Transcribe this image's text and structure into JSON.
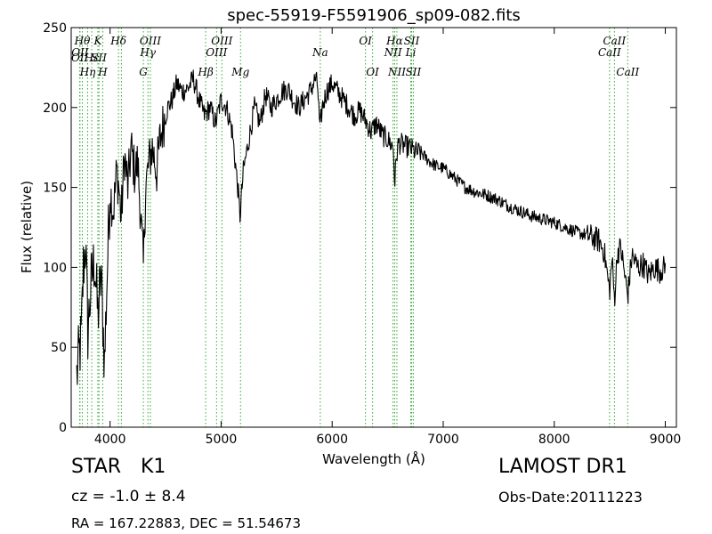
{
  "chart_data": {
    "type": "line",
    "title": "spec-55919-F5591906_sp09-082.fits",
    "xlabel": "Wavelength (Å)",
    "ylabel": "Flux (relative)",
    "xlim": [
      3650,
      9100
    ],
    "ylim": [
      0,
      250
    ],
    "x_ticks": [
      4000,
      5000,
      6000,
      7000,
      8000,
      9000
    ],
    "y_ticks": [
      0,
      50,
      100,
      150,
      200,
      250
    ],
    "grid": false,
    "line_color": "#000000",
    "line_marker_color": "#33aa33",
    "spectrum_anchors": [
      [
        3700,
        32
      ],
      [
        3720,
        45
      ],
      [
        3740,
        55
      ],
      [
        3760,
        100
      ],
      [
        3780,
        115
      ],
      [
        3800,
        60
      ],
      [
        3830,
        90
      ],
      [
        3860,
        105
      ],
      [
        3890,
        70
      ],
      [
        3920,
        95
      ],
      [
        3950,
        40
      ],
      [
        3980,
        110
      ],
      [
        4000,
        148
      ],
      [
        4030,
        135
      ],
      [
        4060,
        160
      ],
      [
        4080,
        150
      ],
      [
        4100,
        130
      ],
      [
        4130,
        170
      ],
      [
        4160,
        150
      ],
      [
        4190,
        175
      ],
      [
        4220,
        160
      ],
      [
        4250,
        165
      ],
      [
        4270,
        140
      ],
      [
        4300,
        100
      ],
      [
        4320,
        150
      ],
      [
        4350,
        165
      ],
      [
        4380,
        175
      ],
      [
        4420,
        160
      ],
      [
        4450,
        180
      ],
      [
        4480,
        190
      ],
      [
        4520,
        200
      ],
      [
        4560,
        205
      ],
      [
        4600,
        215
      ],
      [
        4650,
        210
      ],
      [
        4700,
        212
      ],
      [
        4750,
        218
      ],
      [
        4800,
        205
      ],
      [
        4850,
        195
      ],
      [
        4900,
        200
      ],
      [
        4950,
        190
      ],
      [
        5000,
        205
      ],
      [
        5050,
        200
      ],
      [
        5100,
        185
      ],
      [
        5150,
        150
      ],
      [
        5170,
        132
      ],
      [
        5200,
        160
      ],
      [
        5250,
        180
      ],
      [
        5300,
        200
      ],
      [
        5350,
        190
      ],
      [
        5400,
        208
      ],
      [
        5450,
        200
      ],
      [
        5500,
        205
      ],
      [
        5550,
        210
      ],
      [
        5600,
        212
      ],
      [
        5650,
        205
      ],
      [
        5700,
        200
      ],
      [
        5750,
        205
      ],
      [
        5800,
        210
      ],
      [
        5850,
        218
      ],
      [
        5870,
        213
      ],
      [
        5890,
        185
      ],
      [
        5910,
        200
      ],
      [
        5950,
        210
      ],
      [
        6000,
        215
      ],
      [
        6050,
        210
      ],
      [
        6100,
        205
      ],
      [
        6150,
        200
      ],
      [
        6200,
        195
      ],
      [
        6250,
        198
      ],
      [
        6300,
        192
      ],
      [
        6350,
        185
      ],
      [
        6400,
        190
      ],
      [
        6450,
        183
      ],
      [
        6500,
        180
      ],
      [
        6550,
        175
      ],
      [
        6563,
        152
      ],
      [
        6580,
        170
      ],
      [
        6600,
        178
      ],
      [
        6650,
        176
      ],
      [
        6700,
        175
      ],
      [
        6750,
        172
      ],
      [
        6800,
        172
      ],
      [
        6850,
        168
      ],
      [
        6900,
        165
      ],
      [
        6950,
        163
      ],
      [
        7000,
        162
      ],
      [
        7100,
        156
      ],
      [
        7200,
        150
      ],
      [
        7300,
        147
      ],
      [
        7400,
        145
      ],
      [
        7500,
        142
      ],
      [
        7600,
        138
      ],
      [
        7700,
        135
      ],
      [
        7800,
        132
      ],
      [
        7900,
        130
      ],
      [
        8000,
        128
      ],
      [
        8100,
        125
      ],
      [
        8200,
        122
      ],
      [
        8300,
        120
      ],
      [
        8400,
        117
      ],
      [
        8450,
        110
      ],
      [
        8498,
        85
      ],
      [
        8520,
        105
      ],
      [
        8542,
        80
      ],
      [
        8570,
        110
      ],
      [
        8600,
        112
      ],
      [
        8662,
        82
      ],
      [
        8700,
        108
      ],
      [
        8750,
        100
      ],
      [
        8800,
        102
      ],
      [
        8850,
        95
      ],
      [
        8900,
        100
      ],
      [
        8950,
        98
      ],
      [
        9000,
        100
      ]
    ],
    "lines": [
      {
        "wl": 3727,
        "label": "OII",
        "row": 1
      },
      {
        "wl": 3729,
        "label": "OII",
        "row": 2
      },
      {
        "wl": 3750,
        "label": "Hθ",
        "row": 0
      },
      {
        "wl": 3798,
        "label": "Hη",
        "row": 3
      },
      {
        "wl": 3835,
        "label": "Hε",
        "row": 1
      },
      {
        "wl": 3890,
        "label": "K",
        "row": 0
      },
      {
        "wl": 3900,
        "label": "SII",
        "row": 1
      },
      {
        "wl": 3934,
        "label": "H",
        "row": 3
      },
      {
        "wl": 4076,
        "label": "Hδ",
        "row": 0
      },
      {
        "wl": 4102,
        "label": "",
        "row": 0
      },
      {
        "wl": 4300,
        "label": "G",
        "row": 3
      },
      {
        "wl": 4341,
        "label": "Hγ",
        "row": 2
      },
      {
        "wl": 4363,
        "label": "OIII",
        "row": 0
      },
      {
        "wl": 4861,
        "label": "Hβ",
        "row": 3
      },
      {
        "wl": 4959,
        "label": "OIII",
        "row": 2
      },
      {
        "wl": 5007,
        "label": "OIII",
        "row": 0
      },
      {
        "wl": 5175,
        "label": "Mg",
        "row": 3
      },
      {
        "wl": 5893,
        "label": "Na",
        "row": 2
      },
      {
        "wl": 6300,
        "label": "OI",
        "row": 0
      },
      {
        "wl": 6364,
        "label": "OI",
        "row": 3
      },
      {
        "wl": 6548,
        "label": "NII",
        "row": 2
      },
      {
        "wl": 6563,
        "label": "Hα",
        "row": 0
      },
      {
        "wl": 6583,
        "label": "NII",
        "row": 3
      },
      {
        "wl": 6716,
        "label": "SII",
        "row": 0
      },
      {
        "wl": 6708,
        "label": "Li",
        "row": 2
      },
      {
        "wl": 6731,
        "label": "SII",
        "row": 3
      },
      {
        "wl": 8498,
        "label": "CaII",
        "row": 2
      },
      {
        "wl": 8542,
        "label": "CaII",
        "row": 0
      },
      {
        "wl": 8662,
        "label": "CaII",
        "row": 3
      }
    ]
  },
  "info": {
    "object_class": "STAR",
    "object_subclass": "K1",
    "cz_text": "cz = -1.0  ± 8.4",
    "radec_text": "RA = 167.22883, DEC = 51.54673",
    "survey": "LAMOST DR1",
    "obs_date": "Obs-Date:20111223"
  }
}
